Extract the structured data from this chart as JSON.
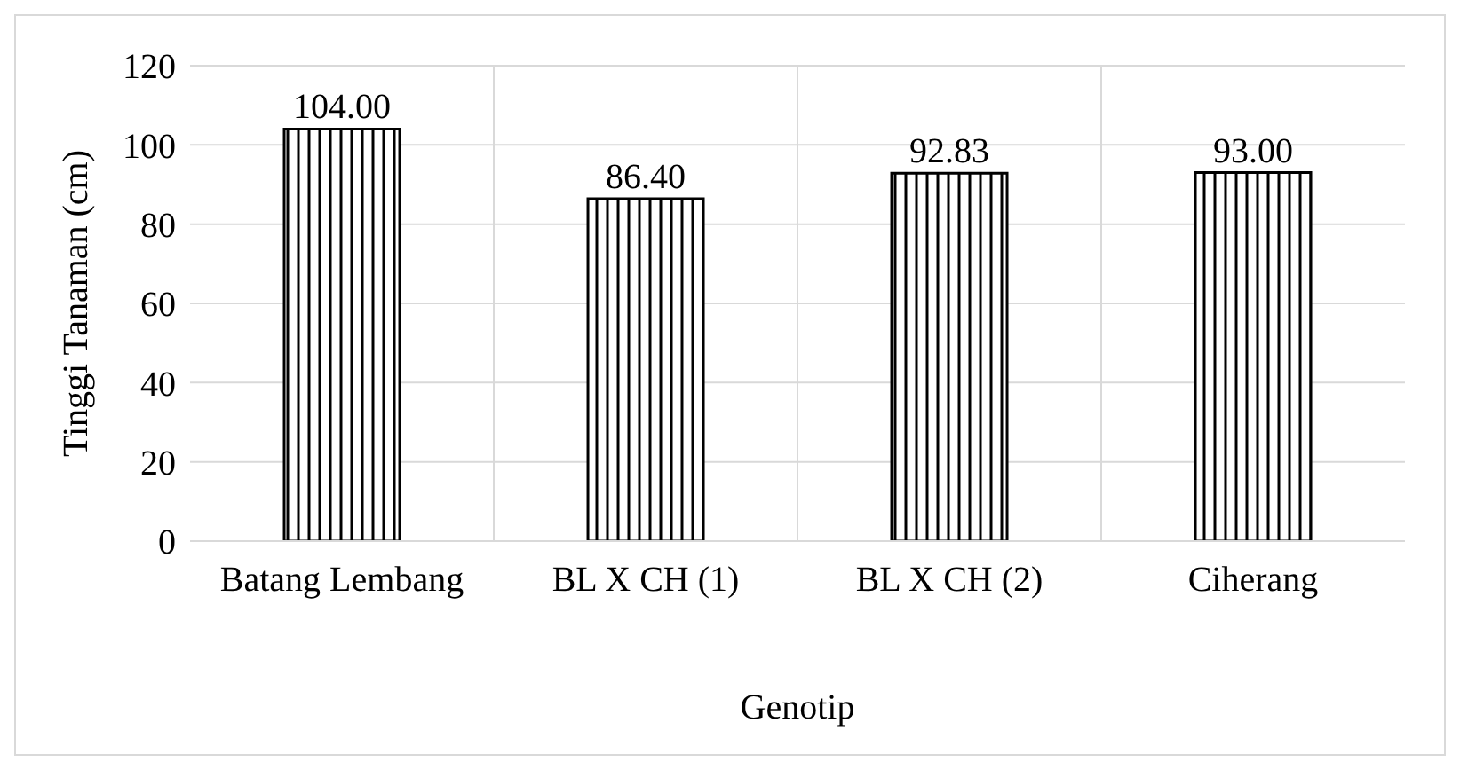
{
  "chart_data": {
    "type": "bar",
    "xlabel": "Genotip",
    "ylabel": "Tinggi Tanaman (cm)",
    "categories": [
      "Batang Lembang",
      "BL X CH (1)",
      "BL X CH (2)",
      "Ciherang"
    ],
    "values": [
      104,
      86.4,
      92.83,
      93
    ],
    "color": "#000000",
    "value_labels": [
      "104.00",
      "86.40",
      "92.83",
      "93.00"
    ],
    "ylim": [
      0,
      120
    ],
    "yticks": [
      0,
      20,
      40,
      60,
      80,
      100,
      120
    ],
    "grid": true
  }
}
